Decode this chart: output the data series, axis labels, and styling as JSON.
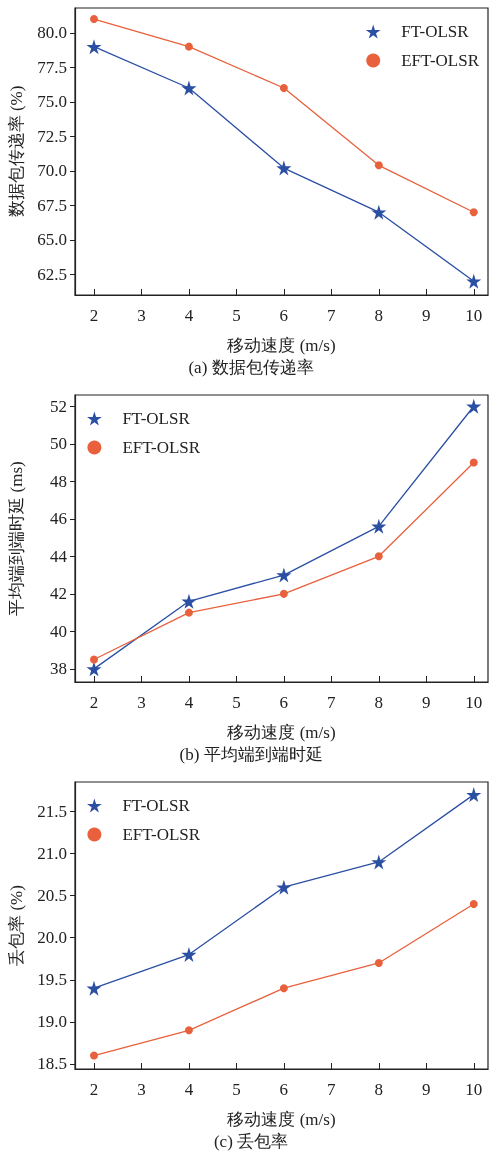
{
  "chart_data": [
    {
      "type": "line",
      "title": "(a) 数据包传递率",
      "xlabel": "移动速度 (m/s)",
      "ylabel": "数据包传递率 (%)",
      "x": [
        2,
        4,
        6,
        8,
        10
      ],
      "series": [
        {
          "name": "FT-OLSR",
          "color": "#2a4fa3",
          "marker": "star",
          "values": [
            79.0,
            76.0,
            70.2,
            67.0,
            62.0
          ]
        },
        {
          "name": "EFT-OLSR",
          "color": "#e8603c",
          "marker": "circle",
          "values": [
            81.0,
            79.0,
            76.0,
            70.4,
            67.0
          ]
        }
      ],
      "xlim": [
        1.6,
        10.3
      ],
      "xticks": [
        2,
        3,
        4,
        5,
        6,
        7,
        8,
        9,
        10
      ],
      "ylim": [
        61.0,
        81.8
      ],
      "yticks": [
        {
          "value": 62.5,
          "label": "62.5"
        },
        {
          "value": 65,
          "label": "65.0"
        },
        {
          "value": 67.5,
          "label": "67.5"
        },
        {
          "value": 70,
          "label": "70.0"
        },
        {
          "value": 72.5,
          "label": "72.5"
        },
        {
          "value": 75,
          "label": "75.0"
        },
        {
          "value": 77.5,
          "label": "77.5"
        },
        {
          "value": 80,
          "label": "80.0"
        }
      ],
      "grid": false,
      "legend": "top right",
      "line_style": "solid"
    },
    {
      "type": "line",
      "title": "(b) 平均端到端时延",
      "xlabel": "移动速度 (m/s)",
      "ylabel": "平均端到端时延 (ms)",
      "x": [
        2,
        4,
        6,
        8,
        10
      ],
      "series": [
        {
          "name": "FT-OLSR",
          "color": "#2a4fa3",
          "marker": "star",
          "values": [
            38.0,
            41.6,
            43.0,
            45.6,
            52.0
          ]
        },
        {
          "name": "EFT-OLSR",
          "color": "#e8603c",
          "marker": "circle",
          "values": [
            38.5,
            41.0,
            42.0,
            44.0,
            49.0
          ]
        }
      ],
      "xlim": [
        1.6,
        10.3
      ],
      "xticks": [
        2,
        3,
        4,
        5,
        6,
        7,
        8,
        9,
        10
      ],
      "ylim": [
        37.3,
        52.6
      ],
      "yticks": [
        38,
        40,
        42,
        44,
        46,
        48,
        50,
        52
      ],
      "grid": false,
      "legend": "top left",
      "line_style": "solid"
    },
    {
      "type": "line",
      "title": "(c) 丢包率",
      "xlabel": "移动速度 (m/s)",
      "ylabel": "丢包率 (%)",
      "x": [
        2,
        4,
        6,
        8,
        10
      ],
      "series": [
        {
          "name": "FT-OLSR",
          "color": "#2a4fa3",
          "marker": "star",
          "values": [
            19.4,
            19.8,
            20.6,
            20.9,
            21.7
          ]
        },
        {
          "name": "EFT-OLSR",
          "color": "#e8603c",
          "marker": "circle",
          "values": [
            18.6,
            18.9,
            19.4,
            19.7,
            20.4
          ]
        }
      ],
      "xlim": [
        1.6,
        10.3
      ],
      "xticks": [
        2,
        3,
        4,
        5,
        6,
        7,
        8,
        9,
        10
      ],
      "ylim": [
        18.44,
        21.85
      ],
      "yticks": [
        {
          "value": 18.5,
          "label": "18.5"
        },
        {
          "value": 19,
          "label": "19.0"
        },
        {
          "value": 19.5,
          "label": "19.5"
        },
        {
          "value": 20,
          "label": "20.0"
        },
        {
          "value": 20.5,
          "label": "20.5"
        },
        {
          "value": 21,
          "label": "21.0"
        },
        {
          "value": 21.5,
          "label": "21.5"
        }
      ],
      "grid": false,
      "legend": "top left",
      "line_style": "solid"
    }
  ]
}
